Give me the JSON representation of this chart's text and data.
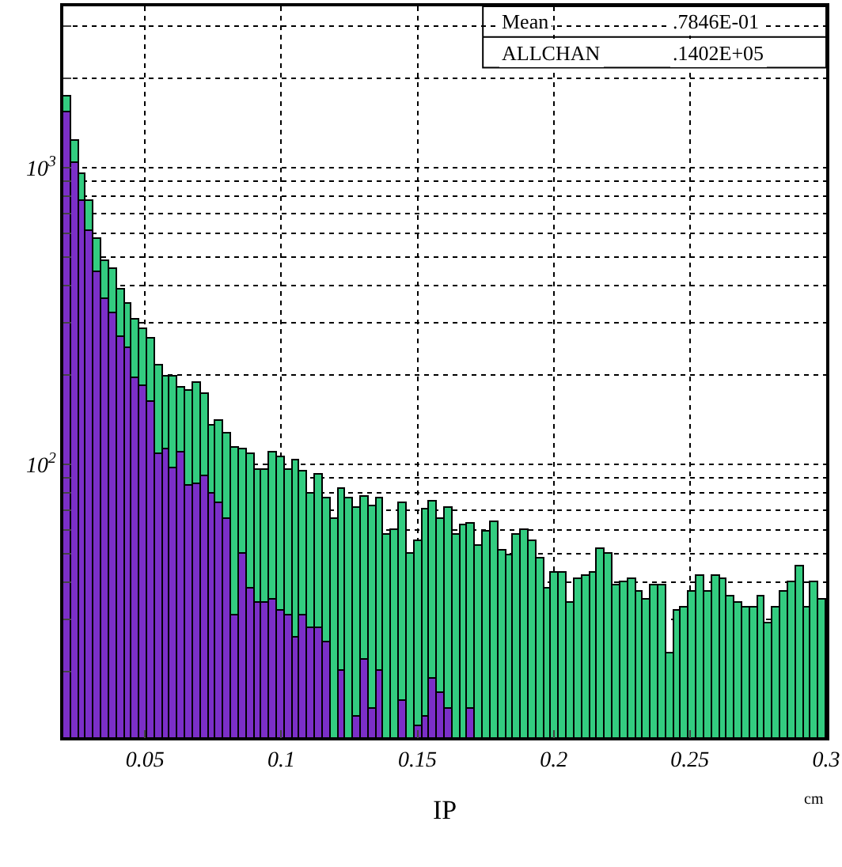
{
  "chart_data": {
    "type": "histogram",
    "xlabel": "IP",
    "annotations": [
      "Mean",
      ".7846E-01",
      "ALLCHAN",
      ".1402E+05",
      "cm"
    ],
    "bins": [
      0.02,
      0.0228,
      0.0256,
      0.0284,
      0.0312,
      0.034,
      0.0368,
      0.0396,
      0.0424,
      0.0452,
      0.048,
      0.0508,
      0.0536,
      0.0564,
      0.0592,
      0.062,
      0.0648,
      0.0676,
      0.0704,
      0.0732,
      0.076,
      0.0788,
      0.0816,
      0.0844,
      0.0872,
      0.09,
      0.0928,
      0.0956,
      0.0984,
      0.1012,
      0.104,
      0.1068,
      0.1096,
      0.1124,
      0.1152,
      0.118,
      0.1208,
      0.1236,
      0.1264,
      0.1292,
      0.132,
      0.1348,
      0.1376,
      0.1404,
      0.1432,
      0.146,
      0.1488,
      0.1516,
      0.1544,
      0.1572,
      0.16,
      0.1628,
      0.1656,
      0.1684,
      0.1712,
      0.174,
      0.1768,
      0.1796,
      0.1824,
      0.1852,
      0.188,
      0.1908,
      0.1936,
      0.1964,
      0.1992,
      0.202,
      0.2048,
      0.2076,
      0.2104,
      0.2132,
      0.216,
      0.2188,
      0.2216,
      0.2244,
      0.2272,
      0.23,
      0.2328,
      0.2356,
      0.2384,
      0.2412,
      0.244,
      0.2468,
      0.2496,
      0.2524,
      0.2552,
      0.258,
      0.2608,
      0.2636,
      0.2664,
      0.2692,
      0.272,
      0.2748,
      0.2776,
      0.2804,
      0.2832,
      0.286,
      0.2888,
      0.2916,
      0.2944,
      0.2972,
      0.3
    ],
    "series": [
      {
        "color": "#33cc80",
        "values": [
          1734,
          1230,
          949,
          768,
          576,
          483,
          455,
          386,
          347,
          308,
          287,
          265,
          216,
          197,
          197,
          181,
          177,
          188,
          173,
          135,
          140,
          127,
          113,
          112,
          108,
          96,
          96,
          110,
          106,
          96,
          103,
          94,
          80,
          92,
          77,
          65,
          83,
          77,
          71,
          78,
          72,
          77,
          58,
          60,
          74,
          50,
          55,
          70,
          75,
          65,
          71,
          58,
          62,
          63,
          53,
          59,
          64,
          51,
          49,
          58,
          60,
          55,
          48,
          38,
          43,
          43,
          34,
          41,
          42,
          43,
          52,
          50,
          39,
          40,
          41,
          37,
          35,
          39,
          39,
          23,
          32,
          33,
          37,
          42,
          37,
          42,
          41,
          36,
          34,
          33,
          33,
          36,
          29,
          33,
          37,
          40,
          45,
          33,
          40,
          35
        ]
      },
      {
        "color": "#7b2fc8",
        "values": [
          1541,
          1040,
          768,
          611,
          443,
          359,
          323,
          267,
          247,
          195,
          184,
          163,
          108,
          112,
          97,
          110,
          85,
          86,
          91,
          80,
          74,
          65,
          31,
          50,
          38,
          34,
          34,
          35,
          32,
          31,
          26,
          31,
          28,
          28,
          25,
          null,
          20,
          null,
          14,
          22,
          15,
          20,
          null,
          null,
          16,
          null,
          13,
          14,
          19,
          17,
          15,
          null,
          null,
          15,
          null,
          null,
          null,
          null,
          null,
          null,
          null,
          null,
          null,
          null,
          null,
          null,
          null,
          null,
          null,
          null,
          null,
          null,
          null,
          null,
          null,
          null,
          null,
          null,
          null,
          null,
          null,
          null,
          null,
          null,
          null,
          null,
          null,
          null,
          null,
          null,
          null,
          null,
          null,
          null,
          null,
          null,
          null,
          null,
          null,
          null
        ]
      }
    ],
    "xlim": [
      0.02,
      0.3
    ],
    "xticks": [
      0.05,
      0.1,
      0.15,
      0.2,
      0.25,
      0.3
    ],
    "ylim": [
      12,
      3500
    ],
    "yticks": [
      {
        "value": 20,
        "label": null
      },
      {
        "value": 30,
        "label": null
      },
      {
        "value": 40,
        "label": null
      },
      {
        "value": 50,
        "label": null
      },
      {
        "value": 60,
        "label": null
      },
      {
        "value": 70,
        "label": null
      },
      {
        "value": 80,
        "label": null
      },
      {
        "value": 90,
        "label": null
      },
      {
        "value": 100,
        "label": "10$^{2}$"
      },
      {
        "value": 200,
        "label": null
      },
      {
        "value": 300,
        "label": null
      },
      {
        "value": 400,
        "label": null
      },
      {
        "value": 500,
        "label": null
      },
      {
        "value": 600,
        "label": null
      },
      {
        "value": 700,
        "label": null
      },
      {
        "value": 800,
        "label": null
      },
      {
        "value": 900,
        "label": null
      },
      {
        "value": 1000,
        "label": "10$^{3}$"
      },
      {
        "value": 2000,
        "label": null
      },
      {
        "value": 3000,
        "label": null
      }
    ],
    "log": true,
    "grid": true
  }
}
